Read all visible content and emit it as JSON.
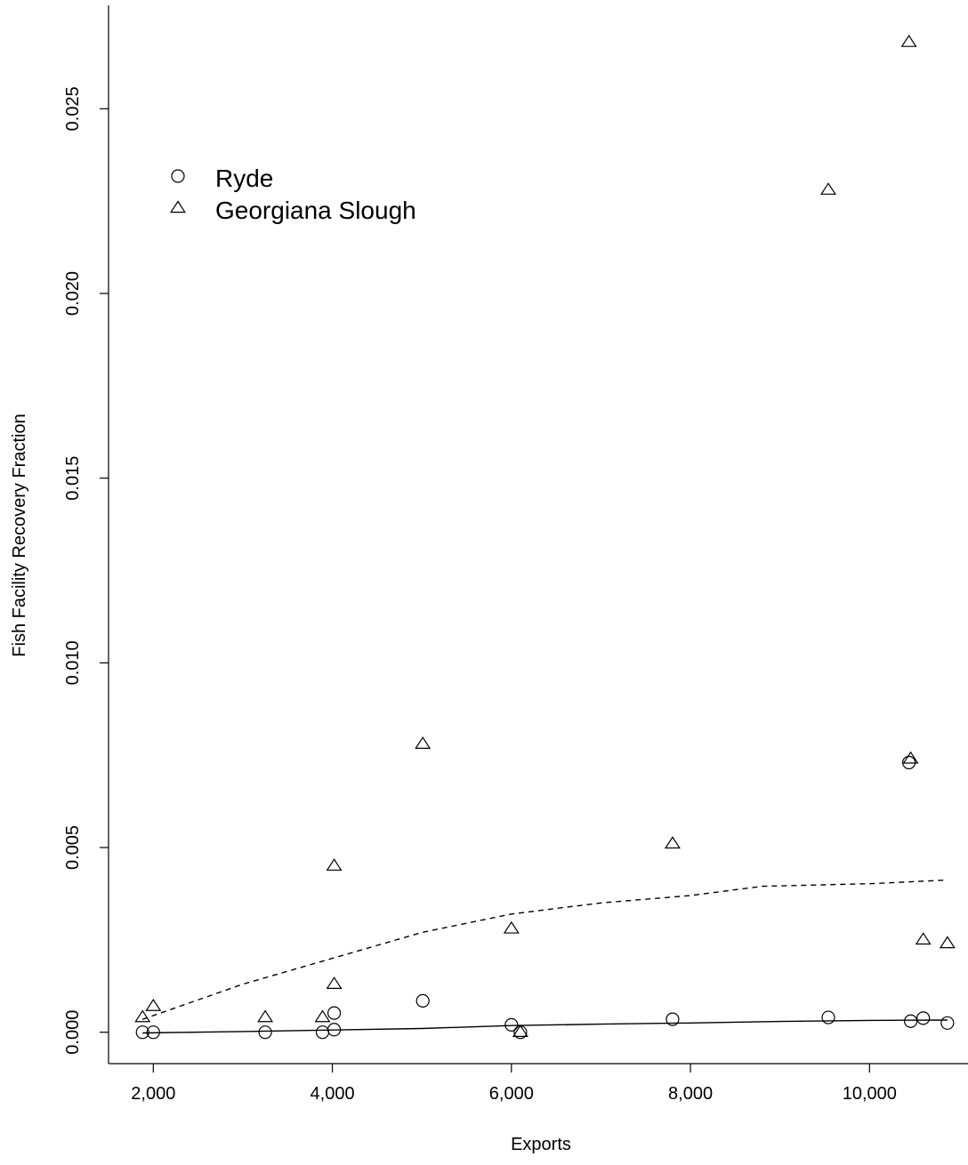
{
  "chart_data": {
    "type": "scatter",
    "title": "",
    "xlabel": "Exports",
    "ylabel": "Fish Facility Recovery Fraction",
    "xlim": [
      1500,
      11100
    ],
    "ylim": [
      -0.00085,
      0.0278
    ],
    "x_ticks": [
      2000,
      4000,
      6000,
      8000,
      10000
    ],
    "x_tick_labels": [
      "2,000",
      "4,000",
      "6,000",
      "8,000",
      "10,000"
    ],
    "y_ticks": [
      0.0,
      0.005,
      0.01,
      0.015,
      0.02,
      0.025
    ],
    "y_tick_labels": [
      "0.000",
      "0.005",
      "0.010",
      "0.015",
      "0.020",
      "0.025"
    ],
    "grid": false,
    "legend_position": "top-left",
    "series": [
      {
        "name": "Ryde",
        "marker": "circle",
        "points": [
          [
            1880,
            0.0
          ],
          [
            2000,
            0.0
          ],
          [
            3250,
            0.0
          ],
          [
            3890,
            0.0
          ],
          [
            4020,
            7e-05
          ],
          [
            4020,
            0.00052
          ],
          [
            5010,
            0.00085
          ],
          [
            6000,
            0.0002
          ],
          [
            6100,
            0.0
          ],
          [
            7800,
            0.00035
          ],
          [
            9540,
            0.0004
          ],
          [
            10440,
            0.0073
          ],
          [
            10460,
            0.0003
          ],
          [
            10600,
            0.00038
          ],
          [
            10870,
            0.00025
          ]
        ],
        "trend": {
          "style": "solid",
          "points": [
            [
              1880,
              -2e-05
            ],
            [
              3000,
              2e-05
            ],
            [
              4000,
              6e-05
            ],
            [
              5000,
              0.0001
            ],
            [
              6000,
              0.00018
            ],
            [
              7000,
              0.00022
            ],
            [
              8000,
              0.00025
            ],
            [
              9000,
              0.00029
            ],
            [
              10000,
              0.00032
            ],
            [
              10870,
              0.00033
            ]
          ]
        }
      },
      {
        "name": "Georgiana Slough",
        "marker": "triangle",
        "points": [
          [
            1880,
            0.0004
          ],
          [
            2000,
            0.0007
          ],
          [
            3250,
            0.0004
          ],
          [
            3890,
            0.0004
          ],
          [
            4020,
            0.0013
          ],
          [
            4020,
            0.0045
          ],
          [
            5010,
            0.0078
          ],
          [
            6000,
            0.0028
          ],
          [
            6100,
            0.0
          ],
          [
            7800,
            0.0051
          ],
          [
            9540,
            0.0228
          ],
          [
            10440,
            0.0268
          ],
          [
            10460,
            0.0074
          ],
          [
            10600,
            0.0025
          ],
          [
            10870,
            0.0024
          ]
        ],
        "trend": {
          "style": "dashed",
          "points": [
            [
              1880,
              0.00035
            ],
            [
              3000,
              0.0013
            ],
            [
              4000,
              0.002
            ],
            [
              5000,
              0.0027
            ],
            [
              6000,
              0.0032
            ],
            [
              7000,
              0.0035
            ],
            [
              8000,
              0.0037
            ],
            [
              8800,
              0.00395
            ],
            [
              10000,
              0.00402
            ],
            [
              10870,
              0.00412
            ]
          ]
        }
      }
    ]
  }
}
